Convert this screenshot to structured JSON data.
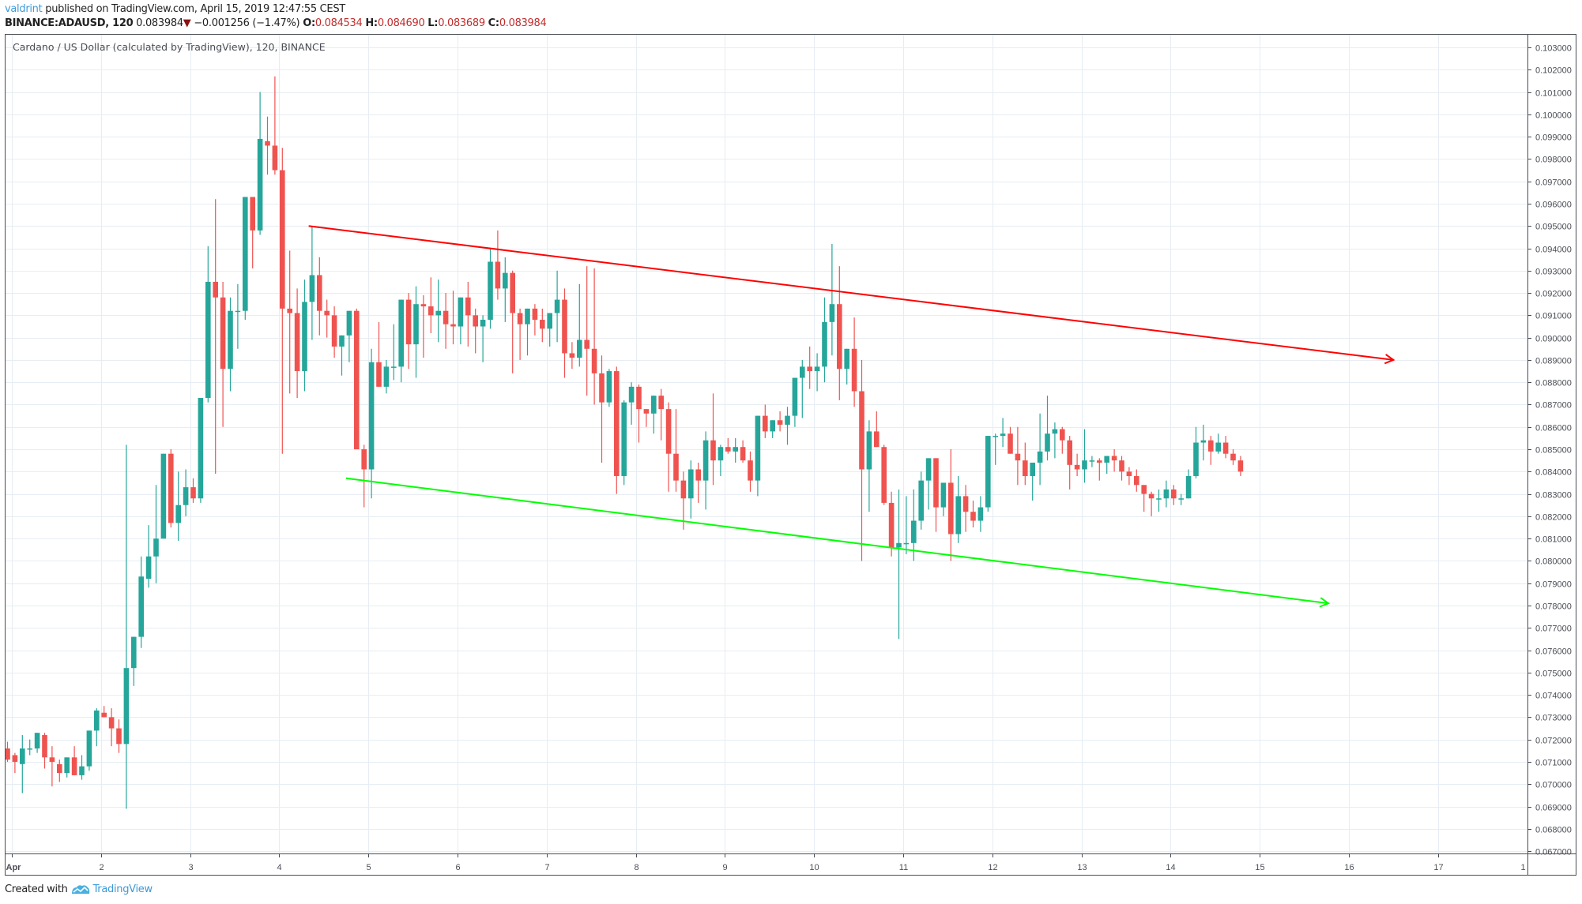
{
  "header": {
    "author": "valdrint",
    "published_text": " published on TradingView.com, April 15, 2019 12:47:55 CEST",
    "symbol": "BINANCE:ADAUSD, 120",
    "last_price": "0.083984",
    "change": "−0.001256 (−1.47%)",
    "o_label": "O:",
    "o_value": "0.084534",
    "h_label": "H:",
    "h_value": "0.084690",
    "l_label": "L:",
    "l_value": "0.083689",
    "c_label": "C:",
    "c_value": "0.083984"
  },
  "footer": {
    "created_with": "Created with",
    "brand": "TradingView"
  },
  "colors": {
    "up": "#26a69a",
    "down": "#ef5350",
    "resistance": "#ff0000",
    "support": "#00ff00",
    "grid": "#e6edf3",
    "axis": "#4a4d55"
  },
  "chart_data": {
    "type": "candlestick",
    "title": "Cardano / US Dollar (calculated by TradingView), 120, BINANCE",
    "interval_hours": 2,
    "xlabel": "",
    "ylabel": "",
    "x_tick_labels": [
      "Apr",
      "2",
      "3",
      "4",
      "5",
      "6",
      "7",
      "8",
      "9",
      "10",
      "11",
      "12",
      "13",
      "14",
      "15",
      "16",
      "17",
      "1"
    ],
    "y_tick_labels": [
      "0.103000",
      "0.102000",
      "0.101000",
      "0.100000",
      "0.099000",
      "0.098000",
      "0.097000",
      "0.096000",
      "0.095000",
      "0.094000",
      "0.093000",
      "0.092000",
      "0.091000",
      "0.090000",
      "0.089000",
      "0.088000",
      "0.087000",
      "0.086000",
      "0.085000",
      "0.084000",
      "0.083000",
      "0.082000",
      "0.081000",
      "0.080000",
      "0.079000",
      "0.078000",
      "0.077000",
      "0.076000",
      "0.075000",
      "0.074000",
      "0.073000",
      "0.072000",
      "0.071000",
      "0.070000",
      "0.069000",
      "0.068000",
      "0.067000"
    ],
    "ylim": [
      0.0669,
      0.1036
    ],
    "grid": true,
    "candles": [
      [
        0.0716,
        0.0719,
        0.071,
        0.0711
      ],
      [
        0.0713,
        0.0714,
        0.0705,
        0.071
      ],
      [
        0.0709,
        0.0722,
        0.0696,
        0.0716
      ],
      [
        0.0716,
        0.072,
        0.0713,
        0.0716
      ],
      [
        0.0716,
        0.0723,
        0.0714,
        0.0723
      ],
      [
        0.0722,
        0.0723,
        0.0707,
        0.0712
      ],
      [
        0.0712,
        0.0717,
        0.0699,
        0.071
      ],
      [
        0.0709,
        0.0711,
        0.0701,
        0.0705
      ],
      [
        0.0705,
        0.0712,
        0.0703,
        0.0712
      ],
      [
        0.0712,
        0.0717,
        0.0704,
        0.0704
      ],
      [
        0.0704,
        0.0713,
        0.0702,
        0.0708
      ],
      [
        0.0708,
        0.0724,
        0.0706,
        0.0724
      ],
      [
        0.0724,
        0.0734,
        0.0717,
        0.0733
      ],
      [
        0.0732,
        0.0735,
        0.073,
        0.073
      ],
      [
        0.073,
        0.0734,
        0.0717,
        0.0725
      ],
      [
        0.0725,
        0.0729,
        0.0714,
        0.0718
      ],
      [
        0.0718,
        0.0852,
        0.0689,
        0.0752
      ],
      [
        0.0752,
        0.0766,
        0.0744,
        0.0766
      ],
      [
        0.0766,
        0.0802,
        0.0761,
        0.0793
      ],
      [
        0.0792,
        0.0816,
        0.0788,
        0.0802
      ],
      [
        0.0802,
        0.0834,
        0.079,
        0.081
      ],
      [
        0.081,
        0.0848,
        0.081,
        0.0848
      ],
      [
        0.0848,
        0.085,
        0.0815,
        0.0817
      ],
      [
        0.0817,
        0.084,
        0.0809,
        0.0825
      ],
      [
        0.0825,
        0.0841,
        0.082,
        0.0833
      ],
      [
        0.0833,
        0.0837,
        0.0826,
        0.0828
      ],
      [
        0.0828,
        0.0873,
        0.0826,
        0.0873
      ],
      [
        0.0873,
        0.0941,
        0.0871,
        0.0925
      ],
      [
        0.0925,
        0.0962,
        0.0839,
        0.0918
      ],
      [
        0.0918,
        0.0925,
        0.086,
        0.0886
      ],
      [
        0.0886,
        0.0918,
        0.0876,
        0.0912
      ],
      [
        0.0912,
        0.0924,
        0.0895,
        0.0912
      ],
      [
        0.0912,
        0.0941,
        0.0908,
        0.0963
      ],
      [
        0.0963,
        0.0963,
        0.0931,
        0.0948
      ],
      [
        0.0948,
        0.101,
        0.0946,
        0.0989
      ],
      [
        0.0988,
        0.0999,
        0.0973,
        0.0986
      ],
      [
        0.0986,
        0.1017,
        0.0973,
        0.0975
      ],
      [
        0.0975,
        0.0985,
        0.0848,
        0.0913
      ],
      [
        0.0913,
        0.0939,
        0.0875,
        0.0911
      ],
      [
        0.0911,
        0.0922,
        0.0873,
        0.0885
      ],
      [
        0.0885,
        0.0926,
        0.0876,
        0.0916
      ],
      [
        0.0916,
        0.095,
        0.0899,
        0.0928
      ],
      [
        0.0928,
        0.0936,
        0.0901,
        0.0912
      ],
      [
        0.0912,
        0.0917,
        0.09,
        0.091
      ],
      [
        0.091,
        0.0914,
        0.0891,
        0.0896
      ],
      [
        0.0896,
        0.09,
        0.0883,
        0.0901
      ],
      [
        0.0901,
        0.0912,
        0.0889,
        0.0912
      ],
      [
        0.0912,
        0.0913,
        0.0878,
        0.085
      ],
      [
        0.085,
        0.0852,
        0.0824,
        0.0841
      ],
      [
        0.0841,
        0.0895,
        0.0828,
        0.0889
      ],
      [
        0.0889,
        0.0907,
        0.0882,
        0.0878
      ],
      [
        0.0878,
        0.089,
        0.0875,
        0.0887
      ],
      [
        0.0887,
        0.0906,
        0.0881,
        0.0887
      ],
      [
        0.0887,
        0.0915,
        0.088,
        0.0917
      ],
      [
        0.0917,
        0.092,
        0.0886,
        0.0897
      ],
      [
        0.0897,
        0.0923,
        0.0882,
        0.0915
      ],
      [
        0.0915,
        0.0919,
        0.0891,
        0.0914
      ],
      [
        0.0914,
        0.0927,
        0.0902,
        0.091
      ],
      [
        0.091,
        0.0926,
        0.0898,
        0.0912
      ],
      [
        0.0912,
        0.092,
        0.0895,
        0.0906
      ],
      [
        0.0906,
        0.0921,
        0.0897,
        0.0905
      ],
      [
        0.0905,
        0.0912,
        0.0897,
        0.0918
      ],
      [
        0.0918,
        0.0925,
        0.0896,
        0.091
      ],
      [
        0.091,
        0.0913,
        0.0893,
        0.0905
      ],
      [
        0.0905,
        0.091,
        0.0889,
        0.0908
      ],
      [
        0.0908,
        0.094,
        0.0904,
        0.0934
      ],
      [
        0.0934,
        0.0948,
        0.0917,
        0.0922
      ],
      [
        0.0922,
        0.0936,
        0.0907,
        0.0929
      ],
      [
        0.0929,
        0.093,
        0.0884,
        0.0911
      ],
      [
        0.0911,
        0.0913,
        0.089,
        0.0906
      ],
      [
        0.0906,
        0.091,
        0.0892,
        0.0913
      ],
      [
        0.0913,
        0.0915,
        0.0901,
        0.0908
      ],
      [
        0.0908,
        0.0913,
        0.0898,
        0.0904
      ],
      [
        0.0904,
        0.091,
        0.0896,
        0.0911
      ],
      [
        0.0911,
        0.093,
        0.0898,
        0.0917
      ],
      [
        0.0917,
        0.0922,
        0.0882,
        0.0893
      ],
      [
        0.0893,
        0.0898,
        0.0886,
        0.0891
      ],
      [
        0.0891,
        0.0924,
        0.0887,
        0.0899
      ],
      [
        0.0899,
        0.0932,
        0.0874,
        0.0895
      ],
      [
        0.0895,
        0.0931,
        0.087,
        0.0884
      ],
      [
        0.0884,
        0.0892,
        0.0844,
        0.0871
      ],
      [
        0.0871,
        0.0886,
        0.0869,
        0.0885
      ],
      [
        0.0885,
        0.0887,
        0.083,
        0.0838
      ],
      [
        0.0838,
        0.0872,
        0.0834,
        0.0871
      ],
      [
        0.0871,
        0.088,
        0.0861,
        0.0878
      ],
      [
        0.0878,
        0.0879,
        0.0853,
        0.0868
      ],
      [
        0.0868,
        0.0867,
        0.086,
        0.0866
      ],
      [
        0.0866,
        0.087,
        0.0857,
        0.0874
      ],
      [
        0.0874,
        0.0877,
        0.0854,
        0.0868
      ],
      [
        0.0868,
        0.0871,
        0.0831,
        0.0848
      ],
      [
        0.0848,
        0.0868,
        0.0831,
        0.0836
      ],
      [
        0.0836,
        0.084,
        0.0814,
        0.0828
      ],
      [
        0.0828,
        0.0845,
        0.0819,
        0.0841
      ],
      [
        0.0841,
        0.0844,
        0.0826,
        0.0836
      ],
      [
        0.0836,
        0.0858,
        0.0823,
        0.0854
      ],
      [
        0.0854,
        0.0875,
        0.0834,
        0.0845
      ],
      [
        0.0845,
        0.0852,
        0.0838,
        0.0851
      ],
      [
        0.0851,
        0.0855,
        0.0848,
        0.0849
      ],
      [
        0.0849,
        0.0855,
        0.0844,
        0.0851
      ],
      [
        0.0851,
        0.0854,
        0.0844,
        0.0845
      ],
      [
        0.0845,
        0.0849,
        0.0831,
        0.0836
      ],
      [
        0.0836,
        0.0865,
        0.0829,
        0.0865
      ],
      [
        0.0865,
        0.087,
        0.0855,
        0.0858
      ],
      [
        0.0858,
        0.0862,
        0.0855,
        0.0863
      ],
      [
        0.0863,
        0.0867,
        0.0858,
        0.0861
      ],
      [
        0.0861,
        0.0869,
        0.0852,
        0.0865
      ],
      [
        0.0865,
        0.0877,
        0.086,
        0.0882
      ],
      [
        0.0882,
        0.089,
        0.0864,
        0.0887
      ],
      [
        0.0887,
        0.0896,
        0.0877,
        0.0885
      ],
      [
        0.0885,
        0.0893,
        0.0876,
        0.0887
      ],
      [
        0.0887,
        0.0918,
        0.088,
        0.0907
      ],
      [
        0.0907,
        0.0942,
        0.0892,
        0.0915
      ],
      [
        0.0915,
        0.0932,
        0.0872,
        0.0886
      ],
      [
        0.0886,
        0.0894,
        0.0879,
        0.0895
      ],
      [
        0.0895,
        0.0909,
        0.0869,
        0.0876
      ],
      [
        0.0876,
        0.089,
        0.08,
        0.0841
      ],
      [
        0.0841,
        0.0863,
        0.0822,
        0.0858
      ],
      [
        0.0858,
        0.0867,
        0.0855,
        0.0851
      ],
      [
        0.0851,
        0.0852,
        0.0825,
        0.0826
      ],
      [
        0.0826,
        0.0831,
        0.0802,
        0.0806
      ],
      [
        0.0806,
        0.0832,
        0.0765,
        0.0808
      ],
      [
        0.0808,
        0.0829,
        0.0803,
        0.0808
      ],
      [
        0.0808,
        0.0832,
        0.08,
        0.0818
      ],
      [
        0.0818,
        0.084,
        0.0814,
        0.0836
      ],
      [
        0.0836,
        0.0845,
        0.0823,
        0.0846
      ],
      [
        0.0846,
        0.0845,
        0.0813,
        0.0824
      ],
      [
        0.0824,
        0.0835,
        0.082,
        0.0835
      ],
      [
        0.0835,
        0.085,
        0.08,
        0.0812
      ],
      [
        0.0812,
        0.0838,
        0.0808,
        0.0829
      ],
      [
        0.0829,
        0.0834,
        0.0813,
        0.0822
      ],
      [
        0.0822,
        0.0827,
        0.0815,
        0.0818
      ],
      [
        0.0818,
        0.0829,
        0.0813,
        0.0824
      ],
      [
        0.0824,
        0.0851,
        0.0822,
        0.0856
      ],
      [
        0.0856,
        0.0857,
        0.0843,
        0.0856
      ],
      [
        0.0856,
        0.0864,
        0.0851,
        0.0857
      ],
      [
        0.0857,
        0.086,
        0.0848,
        0.0848
      ],
      [
        0.0848,
        0.086,
        0.0834,
        0.0845
      ],
      [
        0.0845,
        0.0853,
        0.0834,
        0.0838
      ],
      [
        0.0838,
        0.0844,
        0.0827,
        0.0844
      ],
      [
        0.0844,
        0.0866,
        0.0834,
        0.0849
      ],
      [
        0.0849,
        0.0874,
        0.0845,
        0.0857
      ],
      [
        0.0857,
        0.0862,
        0.0846,
        0.0859
      ],
      [
        0.0859,
        0.086,
        0.0848,
        0.0854
      ],
      [
        0.0854,
        0.0856,
        0.0832,
        0.0843
      ],
      [
        0.0843,
        0.0848,
        0.0838,
        0.0841
      ],
      [
        0.0841,
        0.0859,
        0.0835,
        0.0845
      ],
      [
        0.0845,
        0.0847,
        0.0842,
        0.0845
      ],
      [
        0.0845,
        0.0846,
        0.0836,
        0.0844
      ],
      [
        0.0844,
        0.0847,
        0.0839,
        0.0847
      ],
      [
        0.0847,
        0.085,
        0.084,
        0.0845
      ],
      [
        0.0845,
        0.0847,
        0.0836,
        0.084
      ],
      [
        0.084,
        0.0842,
        0.0834,
        0.0838
      ],
      [
        0.0838,
        0.0841,
        0.0831,
        0.0834
      ],
      [
        0.0834,
        0.0834,
        0.0822,
        0.083
      ],
      [
        0.083,
        0.0831,
        0.082,
        0.0828
      ],
      [
        0.0828,
        0.0832,
        0.0822,
        0.0828
      ],
      [
        0.0828,
        0.0836,
        0.0824,
        0.0832
      ],
      [
        0.0832,
        0.0834,
        0.0825,
        0.0828
      ],
      [
        0.0828,
        0.083,
        0.0825,
        0.0828
      ],
      [
        0.0828,
        0.0841,
        0.0828,
        0.0838
      ],
      [
        0.0838,
        0.086,
        0.0837,
        0.0853
      ],
      [
        0.0853,
        0.0861,
        0.0845,
        0.0854
      ],
      [
        0.0854,
        0.0856,
        0.0843,
        0.0849
      ],
      [
        0.0849,
        0.0857,
        0.0848,
        0.0853
      ],
      [
        0.0853,
        0.0856,
        0.0846,
        0.0848
      ],
      [
        0.0848,
        0.085,
        0.0843,
        0.0845
      ],
      [
        0.0845,
        0.0847,
        0.0838,
        0.084
      ]
    ],
    "trendlines": [
      {
        "name": "resistance",
        "color": "#ff0000",
        "start": {
          "day": 4.33,
          "price": 0.095
        },
        "end": {
          "day": 16.5,
          "price": 0.089
        },
        "arrow": true
      },
      {
        "name": "support",
        "color": "#00ff00",
        "start": {
          "day": 4.75,
          "price": 0.0837
        },
        "end": {
          "day": 15.77,
          "price": 0.0781
        },
        "arrow": true
      }
    ]
  }
}
